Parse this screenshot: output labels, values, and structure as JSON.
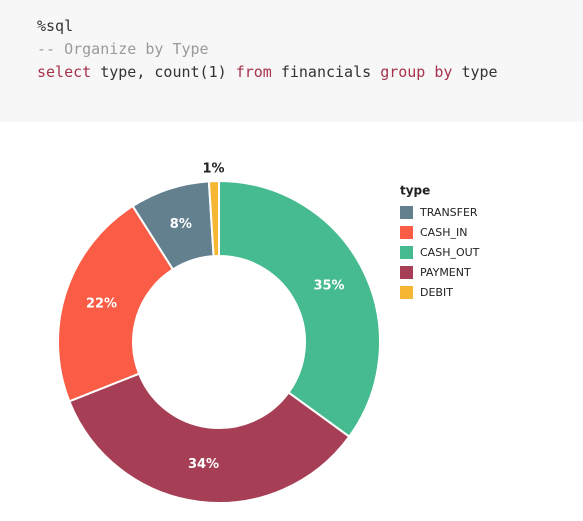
{
  "code": {
    "lines": [
      [
        {
          "text": "%sql",
          "color": "#333333"
        }
      ],
      [
        {
          "text": "-- Organize by Type",
          "color": "#9a9a9a"
        }
      ],
      [
        {
          "text": "select",
          "color": "#a8324c"
        },
        {
          "text": " type, count(1) ",
          "color": "#333333"
        },
        {
          "text": "from",
          "color": "#a8324c"
        },
        {
          "text": " financials ",
          "color": "#333333"
        },
        {
          "text": "group by",
          "color": "#a8324c"
        },
        {
          "text": " type",
          "color": "#333333"
        }
      ]
    ]
  },
  "chart_data": {
    "type": "donut",
    "categories": [
      "CASH_OUT",
      "PAYMENT",
      "CASH_IN",
      "TRANSFER",
      "DEBIT"
    ],
    "values": [
      35,
      34,
      22,
      8,
      1
    ],
    "value_labels": [
      "35%",
      "34%",
      "22%",
      "8%",
      "1%"
    ],
    "colors": [
      "#45bb8f",
      "#a63f55",
      "#fa5c45",
      "#63808f",
      "#f5b632"
    ],
    "direction": "clockwise",
    "legend": {
      "title": "type",
      "entries": [
        "TRANSFER",
        "CASH_IN",
        "CASH_OUT",
        "PAYMENT",
        "DEBIT"
      ]
    }
  }
}
